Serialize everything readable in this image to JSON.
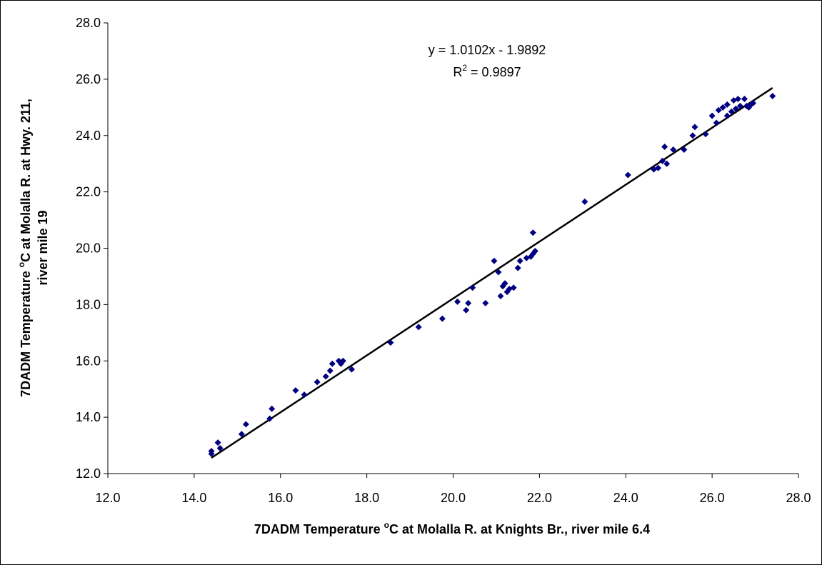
{
  "chart_data": {
    "type": "scatter",
    "xlabel": {
      "pre": "7DADM Temperature ",
      "sup": "o",
      "post": "C at Molalla R. at Knights Br., river mile 6.4"
    },
    "ylabel": {
      "line1_pre": "7DADM Temperature ",
      "line1_sup": "o",
      "line1_post": "C at Molalla R. at Hwy. 211,",
      "line2": "river mile 19"
    },
    "xlim": [
      12.0,
      28.0
    ],
    "ylim": [
      12.0,
      28.0
    ],
    "x_ticks": [
      "12.0",
      "14.0",
      "16.0",
      "18.0",
      "20.0",
      "22.0",
      "24.0",
      "26.0",
      "28.0"
    ],
    "y_ticks": [
      "12.0",
      "14.0",
      "16.0",
      "18.0",
      "20.0",
      "22.0",
      "24.0",
      "26.0",
      "28.0"
    ],
    "grid": false,
    "marker_color": "#000080",
    "trendline": {
      "slope": 1.0102,
      "intercept": -1.9892,
      "x_range": [
        14.4,
        27.4
      ],
      "color": "#000000"
    },
    "equation": {
      "line1": "y = 1.0102x - 1.9892",
      "r2_pre": "R",
      "r2_sup": "2",
      "r2_post": " = 0.9897"
    },
    "points": [
      [
        14.4,
        12.8
      ],
      [
        14.4,
        12.7
      ],
      [
        14.55,
        13.1
      ],
      [
        14.6,
        12.9
      ],
      [
        15.1,
        13.4
      ],
      [
        15.2,
        13.75
      ],
      [
        15.75,
        13.95
      ],
      [
        15.8,
        14.3
      ],
      [
        16.35,
        14.95
      ],
      [
        16.55,
        14.8
      ],
      [
        16.85,
        15.25
      ],
      [
        17.05,
        15.45
      ],
      [
        17.15,
        15.65
      ],
      [
        17.2,
        15.9
      ],
      [
        17.35,
        16.0
      ],
      [
        17.4,
        15.9
      ],
      [
        17.45,
        16.0
      ],
      [
        17.65,
        15.7
      ],
      [
        18.55,
        16.65
      ],
      [
        19.2,
        17.2
      ],
      [
        19.75,
        17.5
      ],
      [
        20.1,
        18.1
      ],
      [
        20.3,
        17.8
      ],
      [
        20.35,
        18.05
      ],
      [
        20.45,
        18.6
      ],
      [
        20.75,
        18.05
      ],
      [
        20.95,
        19.55
      ],
      [
        21.05,
        19.15
      ],
      [
        21.1,
        18.3
      ],
      [
        21.15,
        18.65
      ],
      [
        21.2,
        18.75
      ],
      [
        21.25,
        18.45
      ],
      [
        21.3,
        18.55
      ],
      [
        21.4,
        18.6
      ],
      [
        21.5,
        19.3
      ],
      [
        21.55,
        19.55
      ],
      [
        21.7,
        19.65
      ],
      [
        21.8,
        19.7
      ],
      [
        21.85,
        20.55
      ],
      [
        21.85,
        19.8
      ],
      [
        21.9,
        19.9
      ],
      [
        23.05,
        21.65
      ],
      [
        24.05,
        22.6
      ],
      [
        24.65,
        22.8
      ],
      [
        24.75,
        22.85
      ],
      [
        24.85,
        23.1
      ],
      [
        24.9,
        23.6
      ],
      [
        24.95,
        23.0
      ],
      [
        25.1,
        23.5
      ],
      [
        25.35,
        23.5
      ],
      [
        25.55,
        24.0
      ],
      [
        25.6,
        24.3
      ],
      [
        25.85,
        24.05
      ],
      [
        26.0,
        24.7
      ],
      [
        26.1,
        24.45
      ],
      [
        26.15,
        24.9
      ],
      [
        26.25,
        25.0
      ],
      [
        26.35,
        25.1
      ],
      [
        26.35,
        24.7
      ],
      [
        26.45,
        24.85
      ],
      [
        26.5,
        25.25
      ],
      [
        26.55,
        24.95
      ],
      [
        26.6,
        25.3
      ],
      [
        26.65,
        25.05
      ],
      [
        26.75,
        25.3
      ],
      [
        26.8,
        25.05
      ],
      [
        26.85,
        25.0
      ],
      [
        26.9,
        25.1
      ],
      [
        26.95,
        25.15
      ],
      [
        27.4,
        25.4
      ]
    ]
  }
}
